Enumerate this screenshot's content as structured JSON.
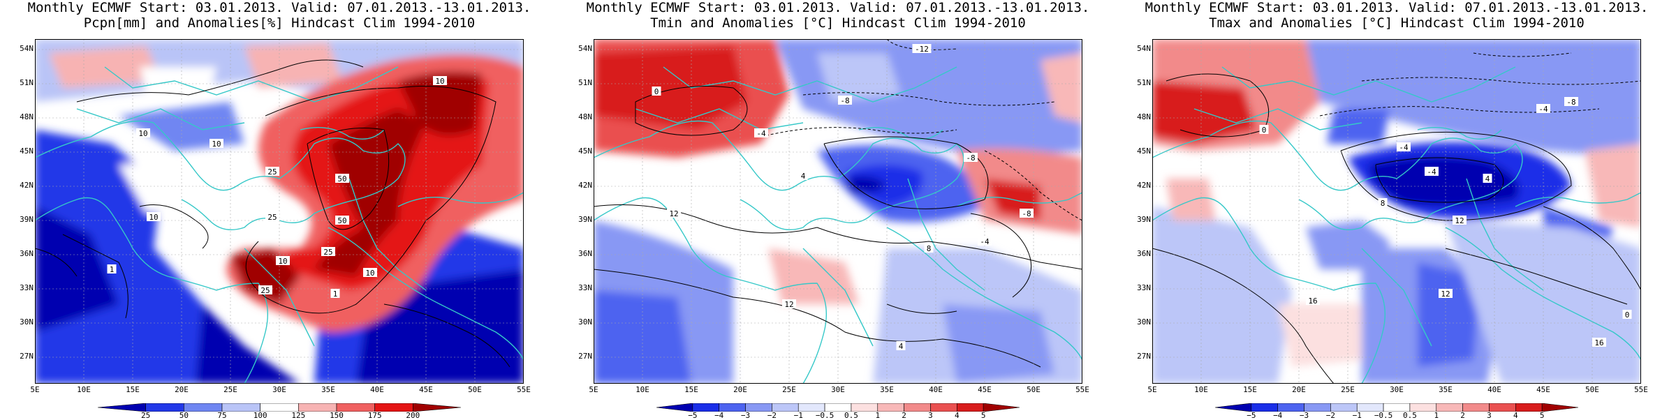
{
  "panels": [
    {
      "title_line1": "Monthly ECMWF Start: 03.01.2013. Valid: 07.01.2013.-13.01.2013.",
      "title_line2": "Pcpn[mm] and Anomalies[%] Hindcast Clim 1994-2010",
      "colorbar_labels": [
        "25",
        "50",
        "75",
        "100",
        "125",
        "150",
        "175",
        "200"
      ],
      "contour_labels": [
        "10",
        "10",
        "10",
        "25",
        "25",
        "50",
        "50",
        "25",
        "10",
        "10",
        "1",
        "1",
        "25",
        "10"
      ]
    },
    {
      "title_line1": "Monthly ECMWF Start: 03.01.2013. Valid: 07.01.2013.-13.01.2013.",
      "title_line2": "Tmin and Anomalies [°C] Hindcast Clim 1994-2010",
      "colorbar_labels": [
        "−5",
        "−4",
        "−3",
        "−2",
        "−1",
        "−0.5",
        "0.5",
        "1",
        "2",
        "3",
        "4",
        "5"
      ],
      "contour_labels": [
        "-12",
        "0",
        "-4",
        "-8",
        "4",
        "-8",
        "12",
        "-4",
        "8",
        "12",
        "-8",
        "4"
      ]
    },
    {
      "title_line1": "Monthly ECMWF Start: 03.01.2013. Valid: 07.01.2013.-13.01.2013.",
      "title_line2": "Tmax and Anomalies [°C] Hindcast Clim 1994-2010",
      "colorbar_labels": [
        "−5",
        "−4",
        "−3",
        "−2",
        "−1",
        "−0.5",
        "0.5",
        "1",
        "2",
        "3",
        "4",
        "5"
      ],
      "contour_labels": [
        "-8",
        "-4",
        "0",
        "-4",
        "4",
        "-4",
        "12",
        "8",
        "16",
        "12",
        "16",
        "0"
      ]
    }
  ],
  "lat_labels": [
    "54N",
    "51N",
    "48N",
    "45N",
    "42N",
    "39N",
    "36N",
    "33N",
    "30N",
    "27N"
  ],
  "lon_labels": [
    "5E",
    "10E",
    "15E",
    "20E",
    "25E",
    "30E",
    "35E",
    "40E",
    "45E",
    "50E",
    "55E"
  ],
  "colors": {
    "precip_scale": [
      "#0000b0",
      "#2238e8",
      "#6f86f2",
      "#b9c4f7",
      "#ffffff",
      "#f7b3b3",
      "#f06060",
      "#e41414",
      "#a00000"
    ],
    "temp_scale": [
      "#0000b0",
      "#1a2ee8",
      "#4d63f0",
      "#8898f4",
      "#bcc6f8",
      "#e2e7fc",
      "#ffffff",
      "#fce0e0",
      "#f8b8b8",
      "#f28a8a",
      "#ea5050",
      "#d81c1c",
      "#a00000"
    ],
    "coastline": "#35c8c8",
    "contour": "#000000"
  }
}
